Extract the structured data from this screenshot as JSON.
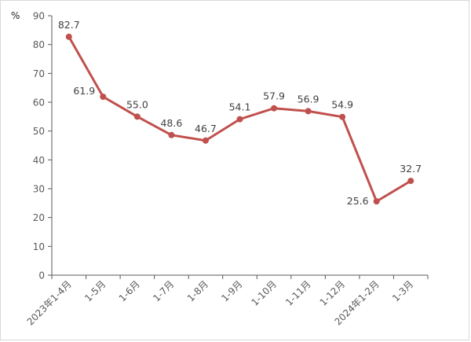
{
  "chart_data": {
    "type": "line",
    "title": "",
    "xlabel": "",
    "ylabel": "%",
    "ylim": [
      0,
      90
    ],
    "y_ticks": [
      0,
      10,
      20,
      30,
      40,
      50,
      60,
      70,
      80,
      90
    ],
    "grid": false,
    "line_color": "#c0504d",
    "categories": [
      "2023年1-4月",
      "1-5月",
      "1-6月",
      "1-7月",
      "1-8月",
      "1-9月",
      "1-10月",
      "1-11月",
      "1-12月",
      "2024年1-2月",
      "1-3月"
    ],
    "series": [
      {
        "values": [
          82.7,
          61.9,
          55.0,
          48.6,
          46.7,
          54.1,
          57.9,
          56.9,
          54.9,
          25.6,
          32.7
        ]
      }
    ],
    "data_labels": [
      "82.7",
      "61.9",
      "55.0",
      "48.6",
      "46.7",
      "54.1",
      "57.9",
      "56.9",
      "54.9",
      "25.6",
      "32.7"
    ]
  }
}
